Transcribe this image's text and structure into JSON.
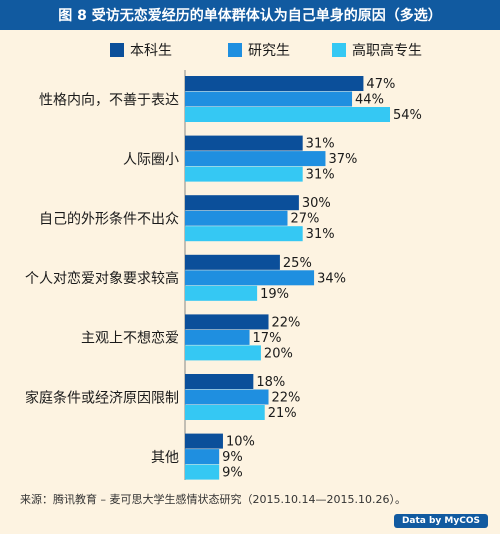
{
  "header": {
    "title": "图 8  受访无恋爱经历的单体群体认为自己单身的原因（多选）"
  },
  "colors": {
    "header_bg": "#115aa0",
    "background": "#fdf3e1",
    "series": [
      "#0b4f9a",
      "#1f8fe0",
      "#35c8f3"
    ]
  },
  "chart_data": {
    "type": "bar",
    "orientation": "horizontal",
    "categories": [
      "性格内向，不善于表达",
      "人际圈小",
      "自己的外形条件不出众",
      "个人对恋爱对象要求较高",
      "主观上不想恋爱",
      "家庭条件或经济原因限制",
      "其他"
    ],
    "series": [
      {
        "name": "本科生",
        "values": [
          47,
          31,
          30,
          25,
          22,
          18,
          10
        ]
      },
      {
        "name": "研究生",
        "values": [
          44,
          37,
          27,
          34,
          17,
          22,
          9
        ]
      },
      {
        "name": "高职高专生",
        "values": [
          54,
          31,
          31,
          19,
          20,
          21,
          9
        ]
      }
    ],
    "value_suffix": "%",
    "xlim": [
      0,
      54
    ],
    "legend_position": "top",
    "grid": false
  },
  "footer": {
    "source": "来源：腾讯教育 – 麦可思大学生感情状态研究（2015.10.14—2015.10.26）。",
    "logo": "Data by MyCOS"
  }
}
